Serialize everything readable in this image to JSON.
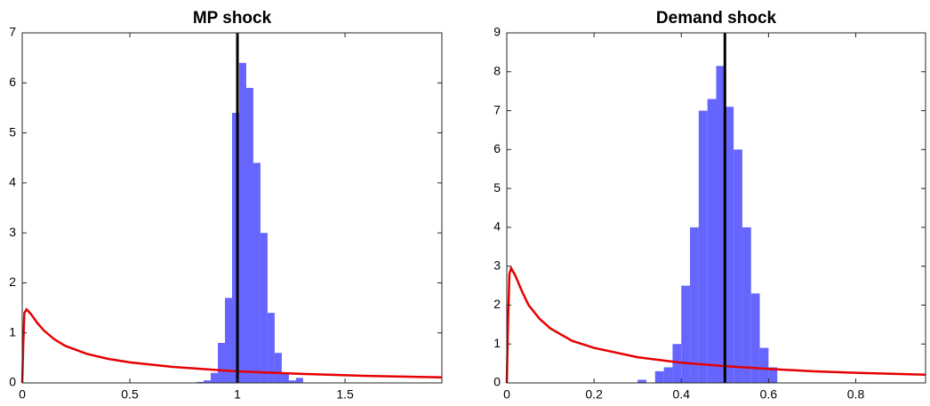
{
  "chart_data": [
    {
      "type": "histogram",
      "title": "MP shock",
      "bins": [
        0.81,
        0.843,
        0.876,
        0.909,
        0.942,
        0.975,
        1.008,
        1.041,
        1.074,
        1.107,
        1.14,
        1.173,
        1.206,
        1.239,
        1.272,
        1.305
      ],
      "values": [
        0.02,
        0.05,
        0.2,
        0.8,
        1.7,
        5.4,
        6.4,
        5.9,
        4.4,
        3.0,
        1.4,
        0.6,
        0.2,
        0.05,
        0.1
      ],
      "color": "#6666ff",
      "line": {
        "color": "#e60000",
        "x": [
          0,
          0.005,
          0.01,
          0.02,
          0.04,
          0.07,
          0.1,
          0.15,
          0.2,
          0.3,
          0.4,
          0.5,
          0.7,
          1.0,
          1.3,
          1.6,
          1.95
        ],
        "values": [
          0,
          0.8,
          1.4,
          1.47,
          1.38,
          1.2,
          1.05,
          0.87,
          0.74,
          0.58,
          0.48,
          0.41,
          0.32,
          0.23,
          0.18,
          0.14,
          0.11
        ]
      },
      "vline": {
        "value": 1,
        "color": "#000000"
      },
      "xlim": [
        0,
        1.95
      ],
      "xticks": [
        0,
        0.5,
        1,
        1.5
      ],
      "ylim": [
        0,
        7
      ],
      "yticks": [
        0,
        1,
        2,
        3,
        4,
        5,
        6,
        7
      ]
    },
    {
      "type": "histogram",
      "title": "Demand shock",
      "bins": [
        0.3,
        0.32,
        0.34,
        0.36,
        0.38,
        0.4,
        0.42,
        0.44,
        0.46,
        0.48,
        0.5,
        0.52,
        0.54,
        0.56,
        0.58,
        0.6,
        0.62
      ],
      "values": [
        0.08,
        0,
        0.3,
        0.4,
        1.0,
        2.5,
        4.0,
        7.0,
        7.3,
        8.15,
        7.1,
        6.0,
        4.0,
        2.3,
        0.9,
        0.4
      ],
      "color": "#6666ff",
      "line": {
        "color": "#e60000",
        "x": [
          0,
          0.003,
          0.006,
          0.01,
          0.02,
          0.035,
          0.05,
          0.075,
          0.1,
          0.15,
          0.2,
          0.3,
          0.4,
          0.5,
          0.6,
          0.7,
          0.8,
          0.96
        ],
        "values": [
          0,
          1.6,
          2.8,
          2.95,
          2.75,
          2.35,
          2.0,
          1.65,
          1.4,
          1.08,
          0.9,
          0.66,
          0.52,
          0.43,
          0.36,
          0.3,
          0.26,
          0.21
        ]
      },
      "vline": {
        "value": 0.5,
        "color": "#000000"
      },
      "xlim": [
        0,
        0.96
      ],
      "xticks": [
        0,
        0.2,
        0.4,
        0.6,
        0.8
      ],
      "ylim": [
        0,
        9
      ],
      "yticks": [
        0,
        1,
        2,
        3,
        4,
        5,
        6,
        7,
        8,
        9
      ]
    }
  ]
}
